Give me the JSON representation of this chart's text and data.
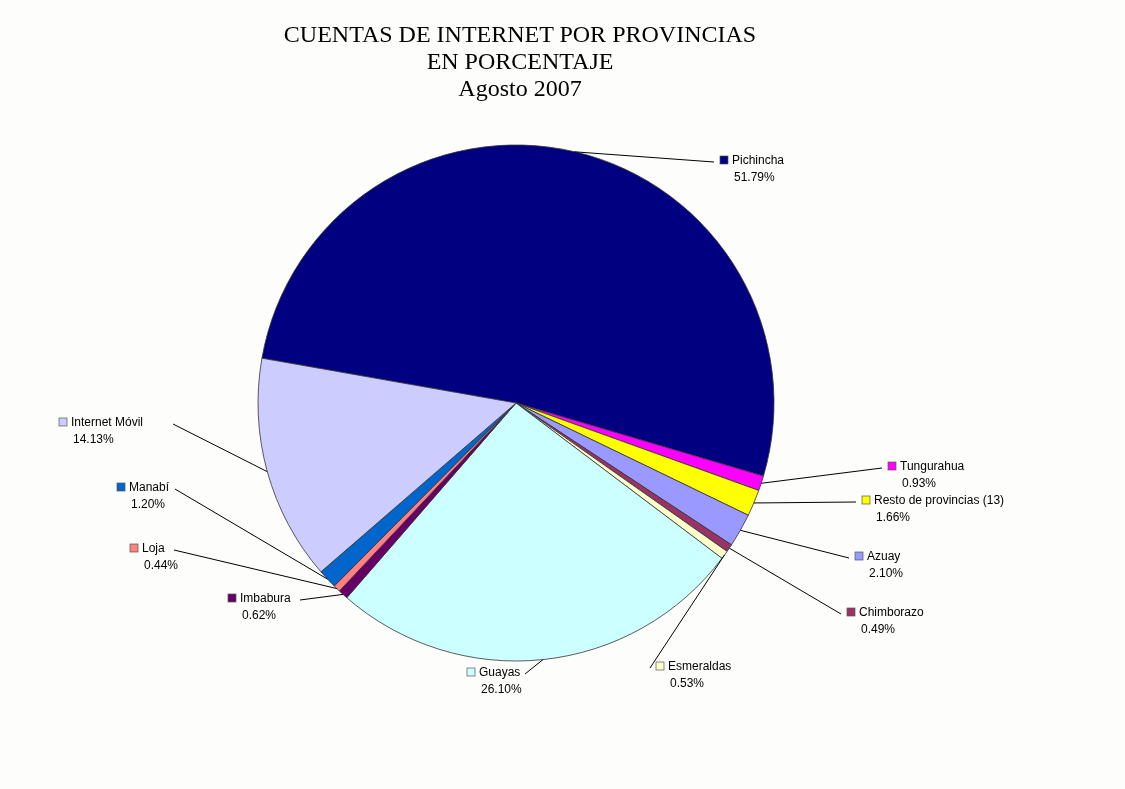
{
  "chart_data": {
    "type": "pie",
    "title": "CUENTAS DE INTERNET POR PROVINCIAS\nEN PORCENTAJE",
    "subtitle": "Agosto 2007",
    "categories": [
      "Pichincha",
      "Tungurahua",
      "Resto de provincias (13)",
      "Azuay",
      "Chimborazo",
      "Esmeraldas",
      "Guayas",
      "Imbabura",
      "Loja",
      "Manabí",
      "Internet Móvil"
    ],
    "values": [
      51.79,
      0.93,
      1.66,
      2.1,
      0.49,
      0.53,
      26.1,
      0.62,
      0.44,
      1.2,
      14.13
    ],
    "colors": [
      "#000080",
      "#ff00ff",
      "#ffff00",
      "#9999ff",
      "#993366",
      "#ffffcc",
      "#ccffff",
      "#660066",
      "#ff8080",
      "#0066cc",
      "#ccccff"
    ],
    "value_labels": [
      "51.79%",
      "0.93%",
      "1.66%",
      "2.10%",
      "0.49%",
      "0.53%",
      "26.10%",
      "0.62%",
      "0.44%",
      "1.20%",
      "14.13%"
    ],
    "legend": "right"
  }
}
